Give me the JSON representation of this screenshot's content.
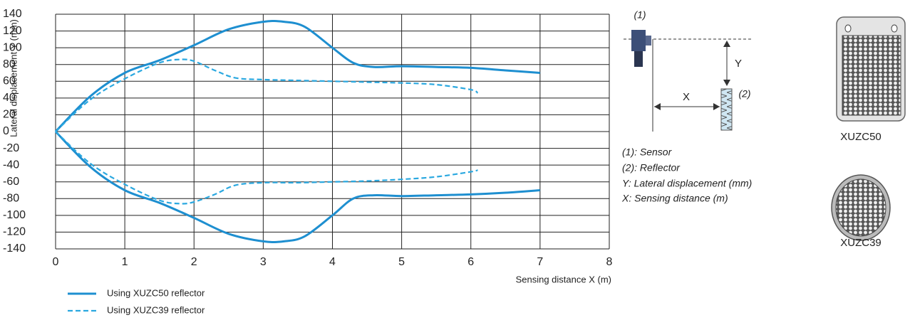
{
  "chart_data": {
    "type": "line",
    "xlabel": "Sensing distance X (m)",
    "ylabel": "Lateral displacement Y (mm)",
    "xlim": [
      0,
      8
    ],
    "xticks": [
      0,
      1,
      2,
      3,
      4,
      5,
      6,
      7,
      8
    ],
    "ylim": [
      -140,
      140
    ],
    "yticks": [
      -140,
      -120,
      -100,
      -80,
      -60,
      -40,
      -20,
      0,
      20,
      40,
      60,
      80,
      100,
      120,
      140
    ],
    "grid": true,
    "series": [
      {
        "name": "Using XUZC50 reflector",
        "color": "#1e8fd0",
        "dashed": false,
        "x": [
          0,
          0.5,
          1,
          1.5,
          2,
          2.5,
          3,
          3.3,
          3.6,
          4,
          4.3,
          4.6,
          5,
          5.5,
          6,
          6.5,
          7
        ],
        "values": [
          0,
          42,
          70,
          85,
          103,
          122,
          131,
          131,
          125,
          100,
          82,
          77,
          78,
          77,
          76,
          73,
          70
        ],
        "lower_values": [
          0,
          -42,
          -70,
          -85,
          -103,
          -122,
          -131,
          -131,
          -125,
          -100,
          -80,
          -76,
          -77,
          -76,
          -75,
          -73,
          -70
        ]
      },
      {
        "name": "Using XUZC39 reflector",
        "color": "#2aa8e0",
        "dashed": true,
        "x": [
          0,
          0.5,
          1,
          1.5,
          1.8,
          2,
          2.3,
          2.6,
          3,
          3.5,
          4,
          4.5,
          5,
          5.5,
          6,
          6.1
        ],
        "values": [
          0,
          38,
          63,
          82,
          86,
          84,
          73,
          64,
          62,
          61,
          60,
          59,
          58,
          56,
          50,
          46
        ],
        "lower_values": [
          0,
          -38,
          -63,
          -82,
          -86,
          -84,
          -75,
          -64,
          -61,
          -61,
          -60,
          -59,
          -57,
          -54,
          -48,
          -46
        ]
      }
    ]
  },
  "diagram": {
    "sensor_tag": "(1)",
    "reflector_tag": "(2)",
    "y_label": "Y",
    "x_label": "X",
    "notes": [
      "(1): Sensor",
      "(2): Reflector",
      "Y: Lateral displacement (mm)",
      "X: Sensing distance (m)"
    ],
    "products": [
      "XUZC50",
      "XUZC39"
    ]
  }
}
